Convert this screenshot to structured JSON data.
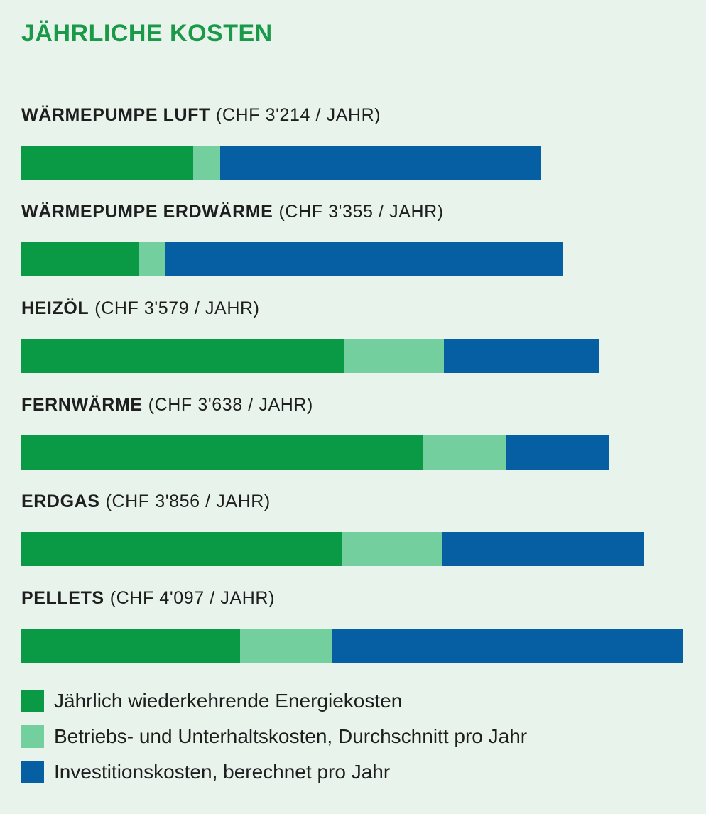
{
  "chart_data": {
    "type": "bar",
    "orientation": "horizontal",
    "stacked": true,
    "title": "JÄHRLICHE KOSTEN",
    "categories": [
      {
        "name": "WÄRMEPUMPE LUFT",
        "cost_label": "(CHF 3'214 / JAHR)"
      },
      {
        "name": "WÄRMEPUMPE ERDWÄRME",
        "cost_label": "(CHF 3'355 / JAHR)"
      },
      {
        "name": "HEIZÖL",
        "cost_label": "(CHF 3'579 / JAHR)"
      },
      {
        "name": "FERNWÄRME",
        "cost_label": "(CHF 3'638 / JAHR)"
      },
      {
        "name": "ERDGAS",
        "cost_label": "(CHF 3'856 / JAHR)"
      },
      {
        "name": "PELLETS",
        "cost_label": "(CHF 4'097 / JAHR)"
      }
    ],
    "totals": [
      3214,
      3355,
      3579,
      3638,
      3856,
      4097
    ],
    "series": [
      {
        "name": "Jährlich wiederkehrende Energiekosten",
        "color": "#0a9a45",
        "values": [
          1065,
          725,
          1996,
          2490,
          1987,
          1353
        ]
      },
      {
        "name": "Betriebs- und Unterhaltskosten, Durchschnitt pro Jahr",
        "color": "#74cf9f",
        "values": [
          166,
          166,
          618,
          508,
          618,
          566
        ]
      },
      {
        "name": "Investitionskosten, berechnet pro Jahr",
        "color": "#055fa2",
        "values": [
          1983,
          2464,
          965,
          640,
          1251,
          2178
        ]
      }
    ],
    "legend_position": "bottom",
    "grid": false
  }
}
